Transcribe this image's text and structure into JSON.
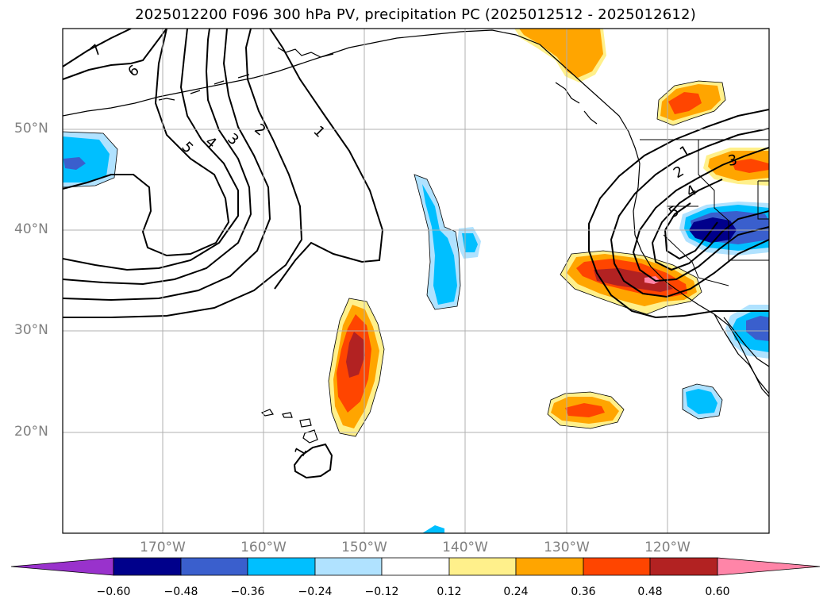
{
  "title": "2025012200 F096 300 hPa PV, precipitation PC (2025012512 - 2025012612)",
  "lat_labels": [
    "50°N",
    "40°N",
    "30°N",
    "20°N"
  ],
  "lon_labels": [
    "170°W",
    "160°W",
    "150°W",
    "140°W",
    "130°W",
    "120°W"
  ],
  "colorbar": {
    "ticks": [
      "−0.60",
      "−0.48",
      "−0.36",
      "−0.24",
      "−0.12",
      "0.12",
      "0.24",
      "0.36",
      "0.48",
      "0.60"
    ],
    "colors": [
      "#9932cc",
      "#00008b",
      "#3a5fcd",
      "#00bfff",
      "#b0e2ff",
      "#ffffff",
      "#fff08b",
      "#ffa500",
      "#ff4500",
      "#b22222",
      "#ff85a8"
    ]
  },
  "contour_labels": [
    "7",
    "6",
    "5",
    "4",
    "3",
    "2",
    "1",
    "1",
    "1",
    "2",
    "3",
    "4",
    "5"
  ]
}
